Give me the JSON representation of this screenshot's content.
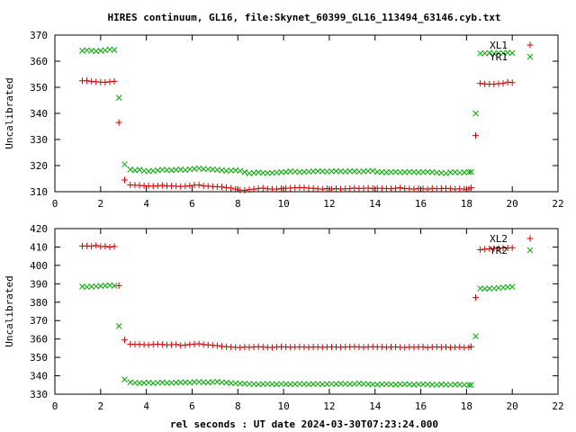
{
  "title": "HIRES continuum, GL16, file:Skynet_60399_GL16_113494_63146.cyb.txt",
  "xlabel": "rel seconds : UT date 2024-03-30T07:23:24.000",
  "colors": {
    "red": "#cc0000",
    "green": "#00aa00",
    "axis": "#000000"
  },
  "chart_data": [
    {
      "type": "scatter",
      "ylabel": "Uncalibrated",
      "xlim": [
        0,
        22
      ],
      "ylim": [
        310,
        370
      ],
      "xticks": [
        0,
        2,
        4,
        6,
        8,
        10,
        12,
        14,
        16,
        18,
        20,
        22
      ],
      "yticks": [
        310,
        320,
        330,
        340,
        350,
        360,
        370
      ],
      "legend_position": "top-right",
      "series": [
        {
          "name": "XL1",
          "marker": "plus",
          "color": "#cc0000",
          "x": [
            1.2,
            1.4,
            1.6,
            1.8,
            2.0,
            2.2,
            2.4,
            2.6,
            2.8,
            3.05,
            3.3,
            3.5,
            3.7,
            3.9,
            4.1,
            4.3,
            4.5,
            4.7,
            4.9,
            5.1,
            5.3,
            5.5,
            5.7,
            5.9,
            6.1,
            6.3,
            6.5,
            6.7,
            6.9,
            7.1,
            7.3,
            7.5,
            7.7,
            7.9,
            8.1,
            8.3,
            8.5,
            8.7,
            8.9,
            9.1,
            9.3,
            9.5,
            9.7,
            9.9,
            10.1,
            10.3,
            10.5,
            10.7,
            10.9,
            11.1,
            11.3,
            11.5,
            11.7,
            11.9,
            12.1,
            12.3,
            12.5,
            12.7,
            12.9,
            13.1,
            13.3,
            13.5,
            13.7,
            13.9,
            14.1,
            14.3,
            14.5,
            14.7,
            14.9,
            15.1,
            15.3,
            15.5,
            15.7,
            15.9,
            16.1,
            16.3,
            16.5,
            16.7,
            16.9,
            17.1,
            17.3,
            17.5,
            17.7,
            17.9,
            18.1,
            18.2,
            18.4,
            18.6,
            18.8,
            19.0,
            19.2,
            19.4,
            19.6,
            19.8,
            20.0
          ],
          "y": [
            352.5,
            352.5,
            352.3,
            352.1,
            352.0,
            351.9,
            352.1,
            352.3,
            336.5,
            314.5,
            312.6,
            312.5,
            312.4,
            312.3,
            312.2,
            312.1,
            312.3,
            312.4,
            312.2,
            312.2,
            312.1,
            312.0,
            312.1,
            312.3,
            312.5,
            312.6,
            312.2,
            312.1,
            312.0,
            311.9,
            311.8,
            311.6,
            311.4,
            311.0,
            310.6,
            310.5,
            310.8,
            311.0,
            311.2,
            311.4,
            311.1,
            311.0,
            311.0,
            311.2,
            311.3,
            311.4,
            311.5,
            311.6,
            311.5,
            311.4,
            311.3,
            311.1,
            311.0,
            311.2,
            311.0,
            311.2,
            311.0,
            311.1,
            311.2,
            311.4,
            311.2,
            311.3,
            311.4,
            311.2,
            311.3,
            311.3,
            311.2,
            311.1,
            311.3,
            311.5,
            311.2,
            311.1,
            311.0,
            311.2,
            311.1,
            311.0,
            311.3,
            311.1,
            311.2,
            311.3,
            311.1,
            311.0,
            311.1,
            311.0,
            311.0,
            311.5,
            331.5,
            351.5,
            351.3,
            351.2,
            351.2,
            351.4,
            351.5,
            352.0,
            351.8
          ]
        },
        {
          "name": "YR1",
          "marker": "cross",
          "color": "#00aa00",
          "x": [
            1.2,
            1.4,
            1.6,
            1.8,
            2.0,
            2.2,
            2.4,
            2.6,
            2.8,
            3.05,
            3.3,
            3.5,
            3.7,
            3.9,
            4.1,
            4.3,
            4.5,
            4.7,
            4.9,
            5.1,
            5.3,
            5.5,
            5.7,
            5.9,
            6.1,
            6.3,
            6.5,
            6.7,
            6.9,
            7.1,
            7.3,
            7.5,
            7.7,
            7.9,
            8.1,
            8.3,
            8.5,
            8.7,
            8.9,
            9.1,
            9.3,
            9.5,
            9.7,
            9.9,
            10.1,
            10.3,
            10.5,
            10.7,
            10.9,
            11.1,
            11.3,
            11.5,
            11.7,
            11.9,
            12.1,
            12.3,
            12.5,
            12.7,
            12.9,
            13.1,
            13.3,
            13.5,
            13.7,
            13.9,
            14.1,
            14.3,
            14.5,
            14.7,
            14.9,
            15.1,
            15.3,
            15.5,
            15.7,
            15.9,
            16.1,
            16.3,
            16.5,
            16.7,
            16.9,
            17.1,
            17.3,
            17.5,
            17.7,
            17.9,
            18.1,
            18.2,
            18.4,
            18.6,
            18.8,
            19.0,
            19.2,
            19.4,
            19.6,
            19.8,
            20.0
          ],
          "y": [
            364.0,
            364.2,
            364.0,
            363.8,
            364.0,
            364.2,
            364.5,
            364.3,
            346.0,
            320.5,
            318.5,
            318.2,
            318.4,
            318.0,
            317.8,
            318.0,
            318.2,
            318.4,
            318.3,
            318.2,
            318.4,
            318.5,
            318.3,
            318.6,
            318.8,
            318.9,
            318.7,
            318.6,
            318.5,
            318.4,
            318.2,
            318.0,
            318.1,
            318.2,
            318.0,
            317.5,
            317.0,
            317.2,
            317.4,
            317.2,
            317.1,
            317.2,
            317.3,
            317.5,
            317.6,
            317.8,
            317.7,
            317.5,
            317.6,
            317.7,
            317.8,
            317.9,
            317.8,
            317.7,
            317.8,
            317.9,
            317.8,
            317.7,
            317.9,
            317.8,
            317.7,
            317.8,
            317.9,
            318.0,
            317.6,
            317.5,
            317.4,
            317.5,
            317.6,
            317.4,
            317.5,
            317.6,
            317.5,
            317.4,
            317.5,
            317.6,
            317.5,
            317.3,
            317.2,
            317.0,
            317.4,
            317.5,
            317.3,
            317.4,
            317.5,
            317.6,
            340.0,
            363.0,
            363.0,
            363.2,
            363.0,
            363.1,
            363.2,
            363.3,
            363.1
          ]
        }
      ]
    },
    {
      "type": "scatter",
      "ylabel": "Uncalibrated",
      "xlim": [
        0,
        22
      ],
      "ylim": [
        330,
        420
      ],
      "xticks": [
        0,
        2,
        4,
        6,
        8,
        10,
        12,
        14,
        16,
        18,
        20,
        22
      ],
      "yticks": [
        330,
        340,
        350,
        360,
        370,
        380,
        390,
        400,
        410,
        420
      ],
      "legend_position": "top-right",
      "series": [
        {
          "name": "XL2",
          "marker": "plus",
          "color": "#cc0000",
          "x": [
            1.2,
            1.4,
            1.6,
            1.8,
            2.0,
            2.2,
            2.4,
            2.6,
            2.8,
            3.05,
            3.3,
            3.5,
            3.7,
            3.9,
            4.1,
            4.3,
            4.5,
            4.7,
            4.9,
            5.1,
            5.3,
            5.5,
            5.7,
            5.9,
            6.1,
            6.3,
            6.5,
            6.7,
            6.9,
            7.1,
            7.3,
            7.5,
            7.7,
            7.9,
            8.1,
            8.3,
            8.5,
            8.7,
            8.9,
            9.1,
            9.3,
            9.5,
            9.7,
            9.9,
            10.1,
            10.3,
            10.5,
            10.7,
            10.9,
            11.1,
            11.3,
            11.5,
            11.7,
            11.9,
            12.1,
            12.3,
            12.5,
            12.7,
            12.9,
            13.1,
            13.3,
            13.5,
            13.7,
            13.9,
            14.1,
            14.3,
            14.5,
            14.7,
            14.9,
            15.1,
            15.3,
            15.5,
            15.7,
            15.9,
            16.1,
            16.3,
            16.5,
            16.7,
            16.9,
            17.1,
            17.3,
            17.5,
            17.7,
            17.9,
            18.1,
            18.2,
            18.4,
            18.6,
            18.8,
            19.0,
            19.2,
            19.4,
            19.6,
            19.8,
            20.0
          ],
          "y": [
            410.5,
            410.6,
            410.4,
            410.8,
            410.2,
            410.4,
            410.0,
            410.3,
            389.0,
            359.5,
            357.2,
            357.0,
            357.1,
            356.9,
            356.8,
            357.0,
            357.2,
            357.0,
            356.8,
            356.9,
            357.0,
            356.5,
            356.7,
            357.0,
            357.2,
            357.4,
            357.0,
            356.8,
            356.6,
            356.4,
            356.0,
            355.8,
            355.6,
            355.5,
            355.4,
            355.6,
            355.5,
            355.7,
            355.8,
            355.6,
            355.5,
            355.4,
            355.6,
            355.8,
            355.7,
            355.5,
            355.6,
            355.7,
            355.6,
            355.5,
            355.7,
            355.6,
            355.5,
            355.6,
            355.7,
            355.6,
            355.5,
            355.6,
            355.7,
            355.8,
            355.6,
            355.5,
            355.7,
            355.8,
            355.6,
            355.7,
            355.5,
            355.6,
            355.7,
            355.5,
            355.4,
            355.6,
            355.5,
            355.6,
            355.7,
            355.4,
            355.6,
            355.7,
            355.5,
            355.6,
            355.4,
            355.5,
            355.6,
            355.4,
            355.5,
            355.8,
            382.5,
            408.5,
            408.8,
            409.0,
            409.2,
            409.3,
            409.4,
            409.5,
            409.6
          ]
        },
        {
          "name": "YR2",
          "marker": "cross",
          "color": "#00aa00",
          "x": [
            1.2,
            1.4,
            1.6,
            1.8,
            2.0,
            2.2,
            2.4,
            2.6,
            2.8,
            3.05,
            3.3,
            3.5,
            3.7,
            3.9,
            4.1,
            4.3,
            4.5,
            4.7,
            4.9,
            5.1,
            5.3,
            5.5,
            5.7,
            5.9,
            6.1,
            6.3,
            6.5,
            6.7,
            6.9,
            7.1,
            7.3,
            7.5,
            7.7,
            7.9,
            8.1,
            8.3,
            8.5,
            8.7,
            8.9,
            9.1,
            9.3,
            9.5,
            9.7,
            9.9,
            10.1,
            10.3,
            10.5,
            10.7,
            10.9,
            11.1,
            11.3,
            11.5,
            11.7,
            11.9,
            12.1,
            12.3,
            12.5,
            12.7,
            12.9,
            13.1,
            13.3,
            13.5,
            13.7,
            13.9,
            14.1,
            14.3,
            14.5,
            14.7,
            14.9,
            15.1,
            15.3,
            15.5,
            15.7,
            15.9,
            16.1,
            16.3,
            16.5,
            16.7,
            16.9,
            17.1,
            17.3,
            17.5,
            17.7,
            17.9,
            18.1,
            18.2,
            18.4,
            18.6,
            18.8,
            19.0,
            19.2,
            19.4,
            19.6,
            19.8,
            20.0
          ],
          "y": [
            388.5,
            388.3,
            388.5,
            388.6,
            388.8,
            389.0,
            389.2,
            388.9,
            367.0,
            338.0,
            336.5,
            336.2,
            336.0,
            336.1,
            336.3,
            336.0,
            336.2,
            336.4,
            336.1,
            336.2,
            336.3,
            336.4,
            336.5,
            336.3,
            336.6,
            336.7,
            336.5,
            336.4,
            336.6,
            336.8,
            336.5,
            336.3,
            336.0,
            335.9,
            335.8,
            335.7,
            335.6,
            335.5,
            335.4,
            335.5,
            335.6,
            335.5,
            335.4,
            335.6,
            335.5,
            335.4,
            335.5,
            335.6,
            335.5,
            335.4,
            335.5,
            335.6,
            335.4,
            335.5,
            335.6,
            335.5,
            335.7,
            335.6,
            335.5,
            335.6,
            335.8,
            335.6,
            335.5,
            335.3,
            335.2,
            335.4,
            335.5,
            335.3,
            335.2,
            335.4,
            335.5,
            335.3,
            335.2,
            335.3,
            335.4,
            335.3,
            335.2,
            335.1,
            335.3,
            335.2,
            335.1,
            335.3,
            335.2,
            335.1,
            335.0,
            335.0,
            361.5,
            387.5,
            387.3,
            387.4,
            387.5,
            387.8,
            388.0,
            388.2,
            388.4
          ]
        }
      ]
    }
  ]
}
